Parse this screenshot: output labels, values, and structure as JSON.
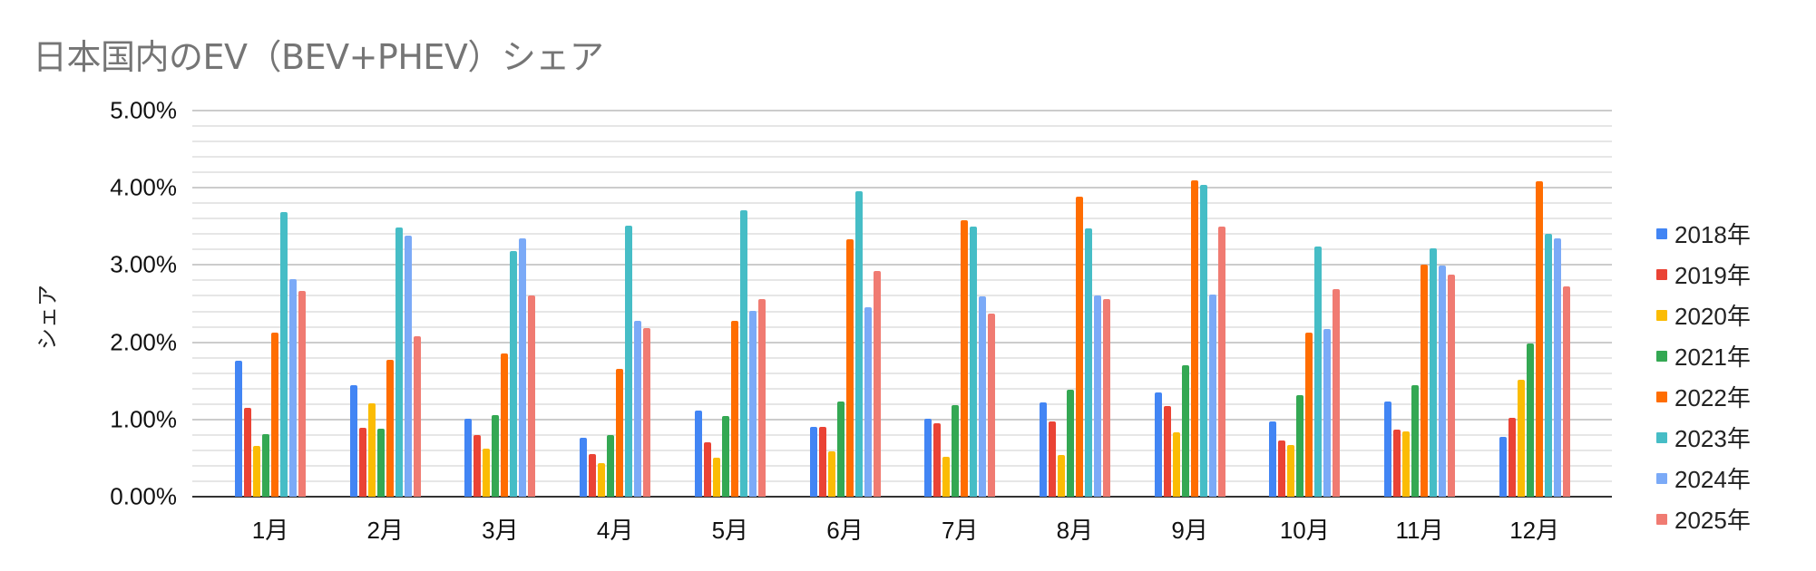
{
  "chart_data": {
    "type": "bar",
    "title": "日本国内のEV（BEV+PHEV）シェア",
    "xlabel": "",
    "ylabel": "シェア",
    "ylim": [
      0,
      5
    ],
    "y_tick_labels": [
      "0.00%",
      "1.00%",
      "2.00%",
      "3.00%",
      "4.00%",
      "5.00%"
    ],
    "y_unit": "%",
    "grid": true,
    "minor_grid_step": 0.2,
    "legend_position": "right",
    "categories": [
      "1月",
      "2月",
      "3月",
      "4月",
      "5月",
      "6月",
      "7月",
      "8月",
      "9月",
      "10月",
      "11月",
      "12月"
    ],
    "series": [
      {
        "name": "2018年",
        "color": "#4285f4",
        "values": [
          1.76,
          1.44,
          1.01,
          0.76,
          1.12,
          0.9,
          1.01,
          1.22,
          1.35,
          0.97,
          1.23,
          0.78
        ]
      },
      {
        "name": "2019年",
        "color": "#ea4335",
        "values": [
          1.15,
          0.89,
          0.8,
          0.55,
          0.71,
          0.9,
          0.95,
          0.97,
          1.17,
          0.73,
          0.87,
          1.02
        ]
      },
      {
        "name": "2020年",
        "color": "#fbbc04",
        "values": [
          0.66,
          1.21,
          0.62,
          0.43,
          0.5,
          0.59,
          0.52,
          0.54,
          0.83,
          0.67,
          0.84,
          1.52
        ]
      },
      {
        "name": "2021年",
        "color": "#34a853",
        "values": [
          0.81,
          0.88,
          1.06,
          0.8,
          1.05,
          1.23,
          1.19,
          1.38,
          1.7,
          1.31,
          1.44,
          1.98
        ]
      },
      {
        "name": "2022年",
        "color": "#ff6d01",
        "values": [
          2.13,
          1.77,
          1.85,
          1.65,
          2.28,
          3.33,
          3.58,
          3.89,
          4.1,
          2.13,
          3.01,
          4.09
        ]
      },
      {
        "name": "2023年",
        "color": "#46bdc6",
        "values": [
          3.68,
          3.49,
          3.18,
          3.51,
          3.71,
          3.95,
          3.5,
          3.48,
          4.04,
          3.24,
          3.22,
          3.4
        ]
      },
      {
        "name": "2024年",
        "color": "#7baaf7",
        "values": [
          2.82,
          3.38,
          3.34,
          2.28,
          2.41,
          2.45,
          2.59,
          2.6,
          2.62,
          2.17,
          2.99,
          3.35
        ]
      },
      {
        "name": "2025年",
        "color": "#f07b72",
        "values": [
          2.66,
          2.08,
          2.61,
          2.18,
          2.56,
          2.92,
          2.37,
          2.56,
          3.5,
          2.69,
          2.87,
          2.72
        ]
      }
    ]
  }
}
